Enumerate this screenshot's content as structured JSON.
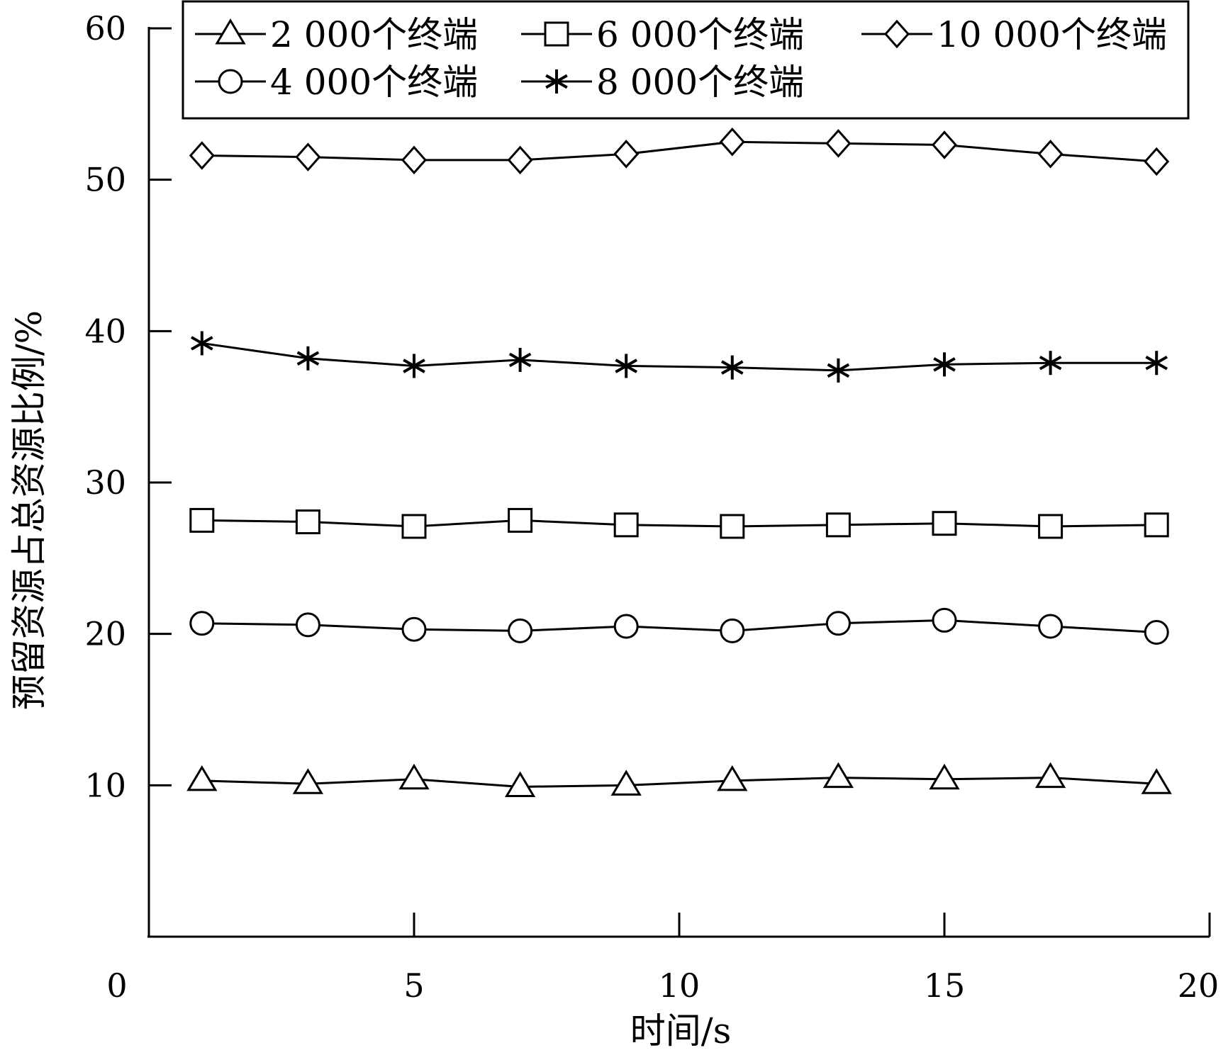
{
  "chart_data": {
    "type": "line",
    "title": "",
    "xlabel": "时间/s",
    "ylabel": "预留资源占总资源比例/%",
    "xlim": [
      0,
      20
    ],
    "ylim": [
      0,
      60
    ],
    "x_ticks": [
      0,
      5,
      10,
      15,
      20
    ],
    "y_ticks": [
      10,
      20,
      30,
      40,
      50,
      60
    ],
    "x_tick_labels": [
      "0",
      "5",
      "10",
      "15",
      "20"
    ],
    "y_tick_labels": [
      "10",
      "20",
      "30",
      "40",
      "50",
      "60"
    ],
    "grid": false,
    "legend_position": "top",
    "x": [
      1,
      3,
      5,
      7,
      9,
      11,
      13,
      15,
      17,
      19
    ],
    "series": [
      {
        "name": "2 000个终端",
        "marker": "triangle",
        "values": [
          10.3,
          10.1,
          10.4,
          9.9,
          10.0,
          10.3,
          10.5,
          10.4,
          10.5,
          10.1
        ]
      },
      {
        "name": "4 000个终端",
        "marker": "circle",
        "values": [
          20.7,
          20.6,
          20.3,
          20.2,
          20.5,
          20.2,
          20.7,
          20.9,
          20.5,
          20.1
        ]
      },
      {
        "name": "6 000个终端",
        "marker": "square",
        "values": [
          27.5,
          27.4,
          27.1,
          27.5,
          27.2,
          27.1,
          27.2,
          27.3,
          27.1,
          27.2
        ]
      },
      {
        "name": "8 000个终端",
        "marker": "asterisk",
        "values": [
          39.2,
          38.2,
          37.7,
          38.1,
          37.7,
          37.6,
          37.4,
          37.8,
          37.9,
          37.9
        ]
      },
      {
        "name": "10 000个终端",
        "marker": "diamond",
        "values": [
          51.6,
          51.5,
          51.3,
          51.3,
          51.7,
          52.5,
          52.4,
          52.3,
          51.7,
          51.2
        ]
      }
    ]
  }
}
